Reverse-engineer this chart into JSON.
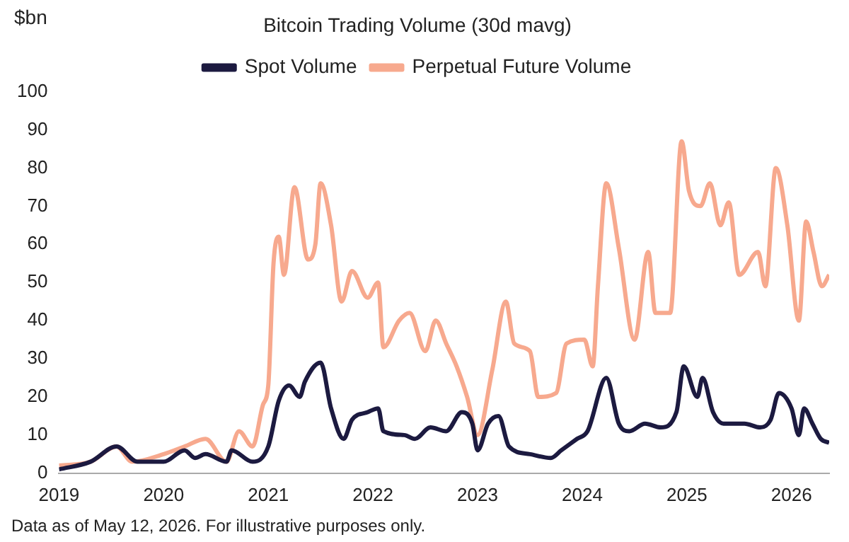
{
  "chart_data": {
    "type": "line",
    "title": "Bitcoin Trading Volume (30d mavg)",
    "ylabel": "$bn",
    "annotations": [
      "Data as of May 12, 2026. For illustrative purposes only."
    ],
    "xlim": [
      2019,
      2026.36
    ],
    "xticks": [
      2019,
      2020,
      2021,
      2022,
      2023,
      2024,
      2025,
      2026
    ],
    "ylim": [
      0,
      100
    ],
    "yticks": [
      0,
      10,
      20,
      30,
      40,
      50,
      60,
      70,
      80,
      90,
      100
    ],
    "grid": false,
    "legend": "top",
    "marker": "none",
    "line_style": "solid",
    "series": [
      {
        "name": "Spot Volume",
        "color": "#1c1a40",
        "x": [
          2019,
          2019.3,
          2019.55,
          2019.75,
          2020,
          2020.2,
          2020.3,
          2020.4,
          2020.6,
          2020.65,
          2020.85,
          2021,
          2021.1,
          2021.2,
          2021.3,
          2021.35,
          2021.5,
          2021.6,
          2021.72,
          2021.8,
          2021.95,
          2022.05,
          2022.1,
          2022.3,
          2022.4,
          2022.55,
          2022.7,
          2022.85,
          2022.95,
          2023,
          2023.1,
          2023.2,
          2023.3,
          2023.5,
          2023.7,
          2023.8,
          2023.95,
          2024.05,
          2024.23,
          2024.35,
          2024.45,
          2024.6,
          2024.75,
          2024.9,
          2024.97,
          2025.1,
          2025.15,
          2025.25,
          2025.35,
          2025.55,
          2025.7,
          2025.8,
          2025.88,
          2026,
          2026.07,
          2026.12,
          2026.2,
          2026.28,
          2026.36
        ],
        "values": [
          1,
          3,
          7,
          3,
          3,
          6,
          4,
          5,
          3,
          6,
          3,
          7,
          19,
          23,
          20,
          24,
          29,
          17,
          9,
          14,
          16,
          17,
          11,
          10,
          9,
          12,
          11,
          16,
          13,
          6,
          13,
          15,
          7,
          5,
          4,
          6,
          9,
          11,
          25,
          13,
          11,
          13,
          12,
          16,
          28,
          20,
          25,
          16,
          13,
          13,
          12,
          14,
          21,
          17,
          10,
          17,
          13,
          9,
          8
        ]
      },
      {
        "name": "Perpetual Future Volume",
        "color": "#f7a98e",
        "x": [
          2019,
          2019.3,
          2019.55,
          2019.7,
          2020,
          2020.2,
          2020.4,
          2020.6,
          2020.72,
          2020.85,
          2020.95,
          2021,
          2021.05,
          2021.1,
          2021.15,
          2021.25,
          2021.38,
          2021.45,
          2021.5,
          2021.6,
          2021.7,
          2021.8,
          2021.95,
          2022.05,
          2022.1,
          2022.25,
          2022.35,
          2022.5,
          2022.6,
          2022.7,
          2022.8,
          2022.9,
          2023,
          2023.14,
          2023.27,
          2023.35,
          2023.5,
          2023.58,
          2023.75,
          2023.85,
          2024.02,
          2024.1,
          2024.15,
          2024.23,
          2024.35,
          2024.5,
          2024.63,
          2024.7,
          2024.84,
          2024.95,
          2025.02,
          2025.13,
          2025.22,
          2025.32,
          2025.4,
          2025.5,
          2025.68,
          2025.75,
          2025.85,
          2025.96,
          2026.07,
          2026.14,
          2026.21,
          2026.29,
          2026.36
        ],
        "values": [
          2,
          3,
          7,
          3,
          5,
          7,
          9,
          3,
          11,
          7,
          18,
          23,
          55,
          62,
          52,
          75,
          56,
          60,
          76,
          65,
          45,
          53,
          46,
          50,
          33,
          40,
          42,
          32,
          40,
          34,
          28,
          20,
          10,
          27,
          45,
          34,
          32,
          20,
          21,
          34,
          35,
          28,
          49,
          76,
          59,
          35,
          58,
          42,
          42,
          87,
          74,
          70,
          76,
          65,
          71,
          52,
          58,
          49,
          80,
          65,
          40,
          66,
          58,
          49,
          52
        ]
      }
    ]
  }
}
